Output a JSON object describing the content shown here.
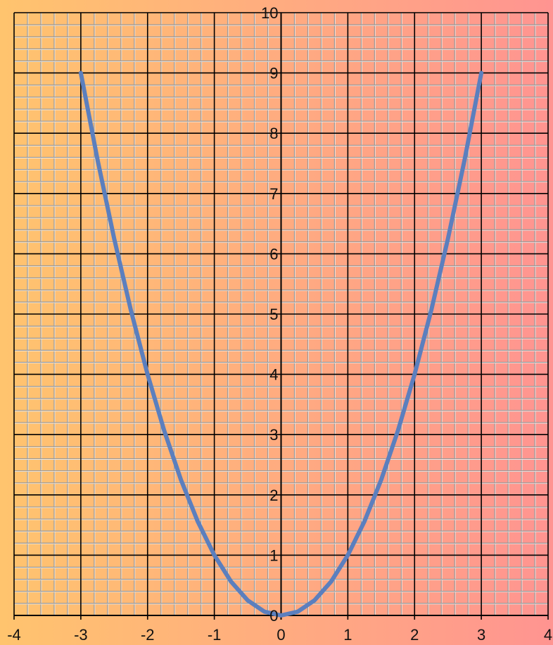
{
  "chart_data": {
    "type": "line",
    "title": "",
    "xlabel": "",
    "ylabel": "",
    "xlim": [
      -4,
      4
    ],
    "ylim": [
      0,
      10
    ],
    "x_ticks": [
      -4,
      -3,
      -2,
      -1,
      0,
      1,
      2,
      3,
      4
    ],
    "y_ticks": [
      0,
      1,
      2,
      3,
      4,
      5,
      6,
      7,
      8,
      9,
      10
    ],
    "x_tick_labels": [
      "-4",
      "-3",
      "-2",
      "-1",
      "0",
      "1",
      "2",
      "3",
      "4"
    ],
    "y_tick_labels": [
      "0",
      "1",
      "2",
      "3",
      "4",
      "5",
      "6",
      "7",
      "8",
      "9",
      "10"
    ],
    "minor_divisions_per_unit": 5,
    "grid": true,
    "legend": "none",
    "background_gradient": [
      "#ffc46e",
      "#ff9491"
    ],
    "colors": {
      "curve": "#5b7fbe",
      "major_grid": "#000000",
      "minor_grid": "#9a9a9a",
      "minor_grid_highlight": "#f2f2f2"
    },
    "series": [
      {
        "x": [
          -3,
          -2.75,
          -2.5,
          -2.25,
          -2,
          -1.75,
          -1.5,
          -1.25,
          -1,
          -0.75,
          -0.5,
          -0.25,
          0,
          0.25,
          0.5,
          0.75,
          1,
          1.25,
          1.5,
          1.75,
          2,
          2.25,
          2.5,
          2.75,
          3
        ],
        "y": [
          9,
          7.5625,
          6.25,
          5.0625,
          4,
          3.0625,
          2.25,
          1.5625,
          1,
          0.5625,
          0.25,
          0.0625,
          0,
          0.0625,
          0.25,
          0.5625,
          1,
          1.5625,
          2.25,
          3.0625,
          4,
          5.0625,
          6.25,
          7.5625,
          9
        ]
      }
    ]
  }
}
